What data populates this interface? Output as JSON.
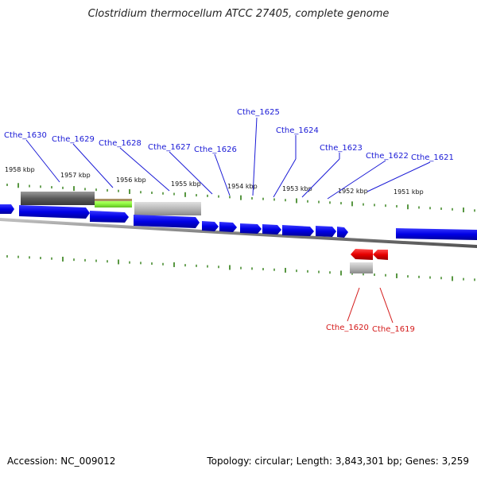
{
  "title": "Clostridium thermocellum ATCC 27405, complete genome",
  "footer": {
    "accession": "Accession: NC_009012",
    "stats": "Topology: circular; Length: 3,843,301 bp; Genes: 3,259"
  },
  "ruler": [
    "1958 kbp",
    "1957 kbp",
    "1956 kbp",
    "1955 kbp",
    "1954 kbp",
    "1953 kbp",
    "1952 kbp",
    "1951 kbp"
  ],
  "genes_forward": [
    "Cthe_1630",
    "Cthe_1629",
    "Cthe_1628",
    "Cthe_1627",
    "Cthe_1626",
    "Cthe_1625",
    "Cthe_1624",
    "Cthe_1623",
    "Cthe_1622",
    "Cthe_1621"
  ],
  "genes_reverse": [
    "Cthe_1620",
    "Cthe_1619"
  ],
  "colors": {
    "forward": "#0000e0",
    "reverse": "#e00000",
    "tick": "#2e7d12",
    "backbone": "#808080",
    "highlight": "#9aff4a"
  }
}
